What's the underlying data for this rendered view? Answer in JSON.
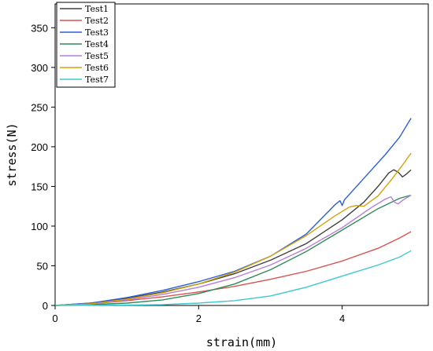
{
  "chart_data": {
    "type": "line",
    "xlabel": "strain(mm)",
    "ylabel": "stress(N)",
    "xlim": [
      0,
      5.2
    ],
    "ylim": [
      0,
      380
    ],
    "xticks": [
      0,
      2,
      4
    ],
    "yticks": [
      0,
      50,
      100,
      150,
      200,
      250,
      300,
      350
    ],
    "legend_position": "top-left",
    "grid": false,
    "series": [
      {
        "name": "Test1",
        "color": "#404040",
        "points": [
          [
            0,
            0
          ],
          [
            0.5,
            3
          ],
          [
            1,
            9
          ],
          [
            1.5,
            17
          ],
          [
            2,
            27
          ],
          [
            2.5,
            40
          ],
          [
            3,
            57
          ],
          [
            3.5,
            78
          ],
          [
            4,
            108
          ],
          [
            4.3,
            130
          ],
          [
            4.5,
            150
          ],
          [
            4.65,
            167
          ],
          [
            4.72,
            171
          ],
          [
            4.78,
            168
          ],
          [
            4.84,
            162
          ],
          [
            4.9,
            166
          ],
          [
            4.96,
            171
          ]
        ]
      },
      {
        "name": "Test2",
        "color": "#d9534f",
        "points": [
          [
            0,
            0
          ],
          [
            0.5,
            2
          ],
          [
            1,
            6
          ],
          [
            1.5,
            11
          ],
          [
            2,
            17
          ],
          [
            2.5,
            24
          ],
          [
            3,
            33
          ],
          [
            3.5,
            43
          ],
          [
            4,
            56
          ],
          [
            4.5,
            72
          ],
          [
            4.8,
            85
          ],
          [
            4.96,
            93
          ]
        ]
      },
      {
        "name": "Test3",
        "color": "#2b5fd9",
        "points": [
          [
            0,
            0
          ],
          [
            0.5,
            3
          ],
          [
            1,
            10
          ],
          [
            1.5,
            19
          ],
          [
            2,
            30
          ],
          [
            2.5,
            43
          ],
          [
            3,
            62
          ],
          [
            3.5,
            90
          ],
          [
            3.9,
            127
          ],
          [
            3.97,
            132
          ],
          [
            4.0,
            126
          ],
          [
            4.03,
            133
          ],
          [
            4.3,
            160
          ],
          [
            4.6,
            190
          ],
          [
            4.8,
            212
          ],
          [
            4.96,
            236
          ]
        ]
      },
      {
        "name": "Test4",
        "color": "#2e8b57",
        "points": [
          [
            0,
            0
          ],
          [
            0.5,
            1
          ],
          [
            1,
            3
          ],
          [
            1.5,
            7
          ],
          [
            2,
            15
          ],
          [
            2.5,
            27
          ],
          [
            3,
            45
          ],
          [
            3.5,
            68
          ],
          [
            4,
            95
          ],
          [
            4.5,
            122
          ],
          [
            4.8,
            135
          ],
          [
            4.96,
            139
          ]
        ]
      },
      {
        "name": "Test5",
        "color": "#b57edc",
        "points": [
          [
            0,
            0
          ],
          [
            0.5,
            2
          ],
          [
            1,
            7
          ],
          [
            1.5,
            14
          ],
          [
            2,
            23
          ],
          [
            2.5,
            35
          ],
          [
            3,
            51
          ],
          [
            3.5,
            72
          ],
          [
            4,
            98
          ],
          [
            4.4,
            123
          ],
          [
            4.6,
            134
          ],
          [
            4.68,
            137
          ],
          [
            4.73,
            130
          ],
          [
            4.78,
            128
          ],
          [
            4.85,
            133
          ],
          [
            4.96,
            139
          ]
        ]
      },
      {
        "name": "Test6",
        "color": "#d4a20b",
        "points": [
          [
            0,
            0
          ],
          [
            0.5,
            2
          ],
          [
            1,
            8
          ],
          [
            1.5,
            16
          ],
          [
            2,
            27
          ],
          [
            2.5,
            42
          ],
          [
            3,
            62
          ],
          [
            3.5,
            88
          ],
          [
            3.9,
            113
          ],
          [
            4.1,
            124
          ],
          [
            4.2,
            126
          ],
          [
            4.3,
            125
          ],
          [
            4.5,
            138
          ],
          [
            4.7,
            160
          ],
          [
            4.85,
            178
          ],
          [
            4.96,
            192
          ]
        ]
      },
      {
        "name": "Test7",
        "color": "#3ec8cf",
        "points": [
          [
            0,
            0
          ],
          [
            1,
            0.5
          ],
          [
            1.5,
            1
          ],
          [
            2,
            3
          ],
          [
            2.5,
            6
          ],
          [
            3,
            12
          ],
          [
            3.5,
            23
          ],
          [
            4,
            37
          ],
          [
            4.5,
            51
          ],
          [
            4.8,
            61
          ],
          [
            4.96,
            69
          ]
        ]
      }
    ]
  }
}
